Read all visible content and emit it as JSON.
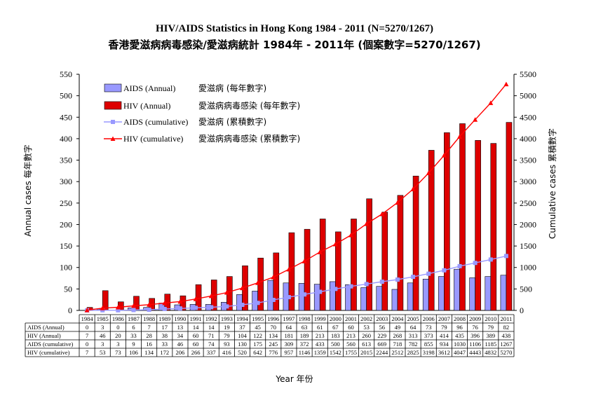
{
  "chart_data": {
    "type": "bar+line",
    "title": "HIV/AIDS Statistics in Hong Kong 1984 - 2011 (N=5270/1267)",
    "subtitle": "香港愛滋病病毒感染/愛滋病統計 1984年 - 2011年 (個案數字=5270/1267)",
    "xlabel": "Year 年份",
    "ylabel_left": "Annual cases   每年數字",
    "ylabel_right": "Cumulative cases   累積數字",
    "ylim_left": [
      0,
      550
    ],
    "ylim_right": [
      0,
      5500
    ],
    "yticks_left": [
      0,
      50,
      100,
      150,
      200,
      250,
      300,
      350,
      400,
      450,
      500,
      550
    ],
    "yticks_right": [
      0,
      500,
      1000,
      1500,
      2000,
      2500,
      3000,
      3500,
      4000,
      4500,
      5000,
      5500
    ],
    "categories": [
      "1984",
      "1985",
      "1986",
      "1987",
      "1988",
      "1989",
      "1990",
      "1991",
      "1992",
      "1993",
      "1994",
      "1995",
      "1996",
      "1997",
      "1998",
      "1999",
      "2000",
      "2001",
      "2002",
      "2003",
      "2004",
      "2005",
      "2006",
      "2007",
      "2008",
      "2009",
      "2010",
      "2011"
    ],
    "series": [
      {
        "name": "AIDS (Annual)",
        "name_zh": "愛滋病 (每年數字)",
        "table_label": "AIDS (Annual)",
        "kind": "bar",
        "axis": "left",
        "color": "#9999ff",
        "values": [
          0,
          3,
          0,
          6,
          7,
          17,
          13,
          14,
          14,
          19,
          37,
          45,
          70,
          64,
          63,
          61,
          67,
          60,
          53,
          56,
          49,
          64,
          73,
          79,
          96,
          76,
          79,
          82
        ]
      },
      {
        "name": "HIV (Annual)",
        "name_zh": "愛滋病病毒感染 (每年數字)",
        "table_label": "HIV (Annual)",
        "kind": "bar",
        "axis": "left",
        "color": "#dd0000",
        "values": [
          7,
          46,
          20,
          33,
          28,
          38,
          34,
          60,
          71,
          79,
          104,
          122,
          134,
          181,
          189,
          213,
          183,
          213,
          260,
          229,
          268,
          313,
          373,
          414,
          435,
          396,
          389,
          438
        ]
      },
      {
        "name": "AIDS (cumulative)",
        "name_zh": "愛滋病 (累積數字)",
        "table_label": "AIDS (cumulative)",
        "kind": "line",
        "axis": "right",
        "color": "#9999ff",
        "values": [
          0,
          3,
          3,
          9,
          16,
          33,
          46,
          60,
          74,
          93,
          130,
          175,
          245,
          309,
          372,
          433,
          500,
          560,
          613,
          669,
          718,
          782,
          855,
          934,
          1030,
          1106,
          1185,
          1267
        ]
      },
      {
        "name": "HIV (cumulative)",
        "name_zh": "愛滋病病毒感染 (累積數字)",
        "table_label": "HIV (cumulative)",
        "kind": "line",
        "axis": "right",
        "color": "#ff0000",
        "values": [
          7,
          53,
          73,
          106,
          134,
          172,
          206,
          266,
          337,
          416,
          520,
          642,
          776,
          957,
          1146,
          1359,
          1542,
          1755,
          2015,
          2244,
          2512,
          2825,
          3198,
          3612,
          4047,
          4443,
          4832,
          5270
        ]
      }
    ],
    "legend_position": "top-left",
    "grid": false
  }
}
